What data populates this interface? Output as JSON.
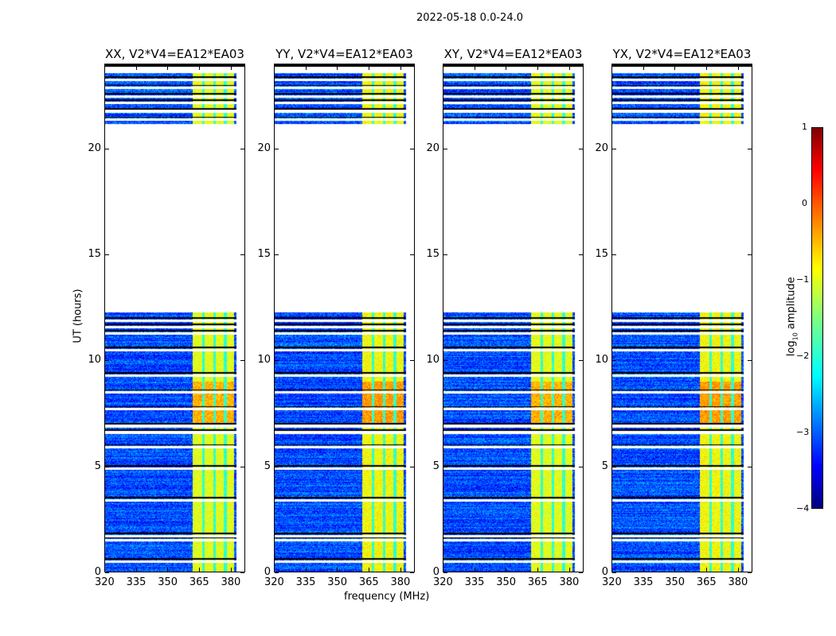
{
  "chart_data": {
    "type": "heatmap",
    "title": "2022-05-18 0.0-24.0",
    "xlabel": "frequency (MHz)",
    "ylabel": "UT (hours)",
    "xlim": [
      320,
      387
    ],
    "ylim": [
      0,
      24
    ],
    "xticks": [
      320,
      335,
      350,
      365,
      380
    ],
    "yticks": [
      0,
      5,
      10,
      15,
      20
    ],
    "panels": [
      {
        "title": "XX, V2*V4=EA12*EA03"
      },
      {
        "title": "YY, V2*V4=EA12*EA03"
      },
      {
        "title": "XY, V2*V4=EA12*EA03"
      },
      {
        "title": "YX, V2*V4=EA12*EA03"
      }
    ],
    "data_time_ranges": [
      [
        0,
        12.3
      ],
      [
        21.2,
        23.6
      ]
    ],
    "background_log_amplitude": -3.0,
    "rfi_band_mhz": [
      362,
      382
    ],
    "rfi_log_amplitude": -1.0,
    "rfi_channel_gaps_mhz": [
      367,
      372.3,
      377.6
    ],
    "flagged_hours": [
      0.5,
      1.5,
      1.7,
      3.4,
      4.9,
      5.9,
      6.6,
      6.9,
      7.7,
      8.5,
      9.3,
      10.5,
      11.3,
      11.6,
      11.9,
      21.4,
      21.8,
      22.2,
      22.5,
      22.9,
      23.3
    ],
    "colorbar": {
      "label": "log10 amplitude",
      "range": [
        -4,
        1
      ],
      "ticks": [
        1,
        0,
        -1,
        -2,
        -3,
        -4
      ],
      "colormap": "jet"
    }
  },
  "colorbar_label_main": "log",
  "colorbar_label_sub": "10",
  "colorbar_label_rest": " amplitude"
}
